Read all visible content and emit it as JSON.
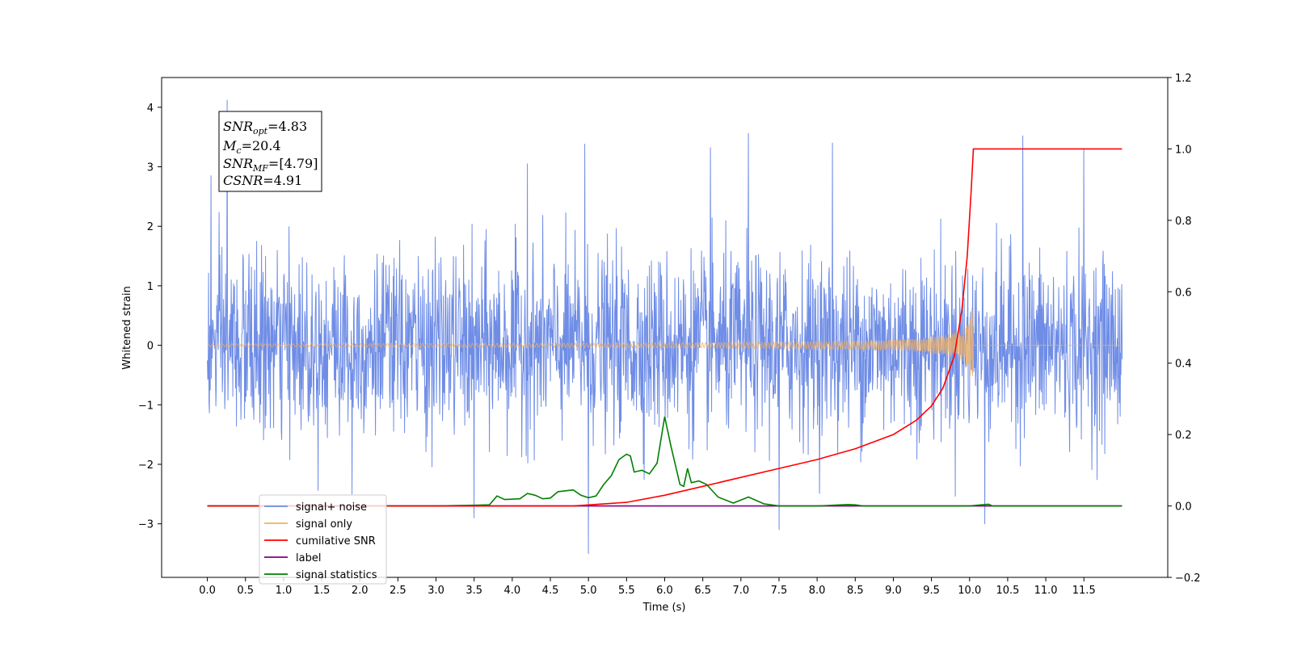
{
  "chart_data": {
    "type": "line",
    "xlabel": "Time (s)",
    "ylabel": "Whitened strain",
    "xlim": [
      -0.6,
      12.6
    ],
    "ylim": [
      -3.9,
      4.5
    ],
    "y2lim": [
      -0.2,
      1.2
    ],
    "x_ticks": [
      0.0,
      0.5,
      1.0,
      1.5,
      2.0,
      2.5,
      3.0,
      3.5,
      4.0,
      4.5,
      5.0,
      5.5,
      6.0,
      6.5,
      7.0,
      7.5,
      8.0,
      8.5,
      9.0,
      9.5,
      10.0,
      10.5,
      11.0,
      11.5
    ],
    "x_tick_labels": [
      "0.0",
      "0.5",
      "1.0",
      "1.5",
      "2.0",
      "2.5",
      "3.0",
      "3.5",
      "4.0",
      "4.5",
      "5.0",
      "5.5",
      "6.0",
      "6.5",
      "7.0",
      "7.5",
      "8.0",
      "8.5",
      "9.0",
      "9.5",
      "10.0",
      "10.5",
      "11.0",
      "11.5"
    ],
    "y_ticks": [
      -3,
      -2,
      -1,
      0,
      1,
      2,
      3,
      4
    ],
    "y_tick_labels": [
      "−3",
      "−2",
      "−1",
      "0",
      "1",
      "2",
      "3",
      "4"
    ],
    "y2_ticks": [
      -0.2,
      0.0,
      0.2,
      0.4,
      0.6,
      0.8,
      1.0,
      1.2
    ],
    "y2_tick_labels": [
      "−0.2",
      "0.0",
      "0.2",
      "0.4",
      "0.6",
      "0.8",
      "1.0",
      "1.2"
    ],
    "grid": false,
    "legend_placement": "bottom-left",
    "info_box": {
      "snr_opt": {
        "sym": "SNR",
        "sub": "opt",
        "value": "=4.83"
      },
      "mc": {
        "sym": "M",
        "sub": "c",
        "value": "=20.4"
      },
      "snr_mf": {
        "sym": "SNR",
        "sub": "MF",
        "value": "=[4.79]"
      },
      "csnr": {
        "sym": "CSNR",
        "value": "=4.91"
      }
    },
    "series": [
      {
        "name": "signal+ noise",
        "color": "#6f8de6",
        "axis": "left",
        "kind": "noise",
        "x_range": [
          0.0,
          12.0
        ],
        "sigma": 0.75,
        "peaks": [
          [
            0.26,
            4.12
          ],
          [
            0.05,
            2.85
          ],
          [
            5.0,
            -3.5
          ],
          [
            7.1,
            3.56
          ],
          [
            10.7,
            3.52
          ],
          [
            4.95,
            3.38
          ],
          [
            8.2,
            3.4
          ],
          [
            6.6,
            3.32
          ],
          [
            11.5,
            3.3
          ],
          [
            3.5,
            -2.9
          ],
          [
            7.5,
            -3.1
          ],
          [
            10.2,
            -3.0
          ],
          [
            4.2,
            3.05
          ],
          [
            1.9,
            -2.5
          ]
        ]
      },
      {
        "name": "signal only",
        "color": "#f0b060",
        "axis": "left",
        "kind": "chirp",
        "merger_time": 10.05,
        "peak_amplitude": 1.0,
        "x_range": [
          0.0,
          12.0
        ]
      },
      {
        "name": "cumilative SNR",
        "color": "#ff0000",
        "axis": "right",
        "x": [
          0.0,
          4.8,
          5.5,
          6.0,
          6.5,
          7.0,
          7.5,
          8.0,
          8.5,
          9.0,
          9.3,
          9.5,
          9.65,
          9.8,
          9.9,
          9.97,
          10.02,
          10.05,
          12.0
        ],
        "y": [
          0.0,
          0.0,
          0.01,
          0.03,
          0.055,
          0.08,
          0.105,
          0.13,
          0.16,
          0.2,
          0.24,
          0.28,
          0.33,
          0.42,
          0.55,
          0.7,
          0.88,
          1.0,
          1.0
        ]
      },
      {
        "name": "label",
        "color": "#800080",
        "axis": "right",
        "x": [
          0.0,
          12.0
        ],
        "y": [
          0.0,
          0.0
        ]
      },
      {
        "name": "signal statistics",
        "color": "#008000",
        "axis": "right",
        "x": [
          0.0,
          2.0,
          3.0,
          3.5,
          3.7,
          3.8,
          3.9,
          4.1,
          4.2,
          4.3,
          4.4,
          4.5,
          4.6,
          4.8,
          4.9,
          5.0,
          5.1,
          5.2,
          5.3,
          5.4,
          5.5,
          5.55,
          5.6,
          5.7,
          5.8,
          5.9,
          6.0,
          6.08,
          6.2,
          6.25,
          6.3,
          6.35,
          6.45,
          6.55,
          6.7,
          6.9,
          7.1,
          7.3,
          7.5,
          8.0,
          8.4,
          8.5,
          8.6,
          9.0,
          10.0,
          10.2,
          10.25,
          10.3,
          12.0
        ],
        "y": [
          0.0,
          0.0,
          0.0,
          0.002,
          0.003,
          0.028,
          0.018,
          0.02,
          0.035,
          0.03,
          0.02,
          0.022,
          0.04,
          0.045,
          0.03,
          0.023,
          0.028,
          0.06,
          0.085,
          0.13,
          0.145,
          0.14,
          0.095,
          0.1,
          0.09,
          0.12,
          0.25,
          0.17,
          0.06,
          0.055,
          0.105,
          0.065,
          0.07,
          0.06,
          0.025,
          0.008,
          0.025,
          0.006,
          0.0,
          0.0,
          0.004,
          0.003,
          0.0,
          0.0,
          0.0,
          0.004,
          0.005,
          0.0,
          0.0
        ]
      }
    ]
  }
}
